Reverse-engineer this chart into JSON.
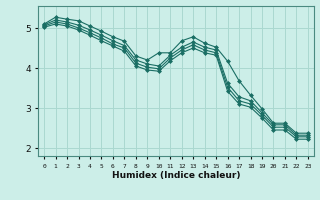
{
  "title": "",
  "xlabel": "Humidex (Indice chaleur)",
  "ylabel": "",
  "background_color": "#cceee8",
  "grid_color": "#aad8d0",
  "line_color": "#1a6e64",
  "xlim": [
    -0.5,
    23.5
  ],
  "ylim": [
    1.8,
    5.55
  ],
  "xticks": [
    0,
    1,
    2,
    3,
    4,
    5,
    6,
    7,
    8,
    9,
    10,
    11,
    12,
    13,
    14,
    15,
    16,
    17,
    18,
    19,
    20,
    21,
    22,
    23
  ],
  "yticks": [
    2,
    3,
    4,
    5
  ],
  "series": [
    [
      5.1,
      5.27,
      5.22,
      5.18,
      5.05,
      4.92,
      4.78,
      4.67,
      4.3,
      4.2,
      4.38,
      4.38,
      4.68,
      4.78,
      4.62,
      4.52,
      4.17,
      3.68,
      3.32,
      2.98,
      2.62,
      2.62,
      2.37,
      2.37
    ],
    [
      5.08,
      5.2,
      5.15,
      5.07,
      4.95,
      4.82,
      4.68,
      4.56,
      4.2,
      4.1,
      4.05,
      4.32,
      4.52,
      4.65,
      4.52,
      4.45,
      3.62,
      3.28,
      3.18,
      2.88,
      2.58,
      2.58,
      2.32,
      2.32
    ],
    [
      5.05,
      5.15,
      5.1,
      5.0,
      4.88,
      4.75,
      4.6,
      4.5,
      4.12,
      4.02,
      3.98,
      4.25,
      4.45,
      4.58,
      4.45,
      4.38,
      3.52,
      3.18,
      3.1,
      2.82,
      2.52,
      2.52,
      2.28,
      2.28
    ],
    [
      5.02,
      5.1,
      5.05,
      4.95,
      4.82,
      4.68,
      4.55,
      4.42,
      4.05,
      3.95,
      3.92,
      4.18,
      4.38,
      4.5,
      4.38,
      4.32,
      3.42,
      3.1,
      3.02,
      2.75,
      2.45,
      2.45,
      2.22,
      2.22
    ]
  ],
  "marker": "D",
  "markersize": 2.0,
  "linewidth": 0.8
}
